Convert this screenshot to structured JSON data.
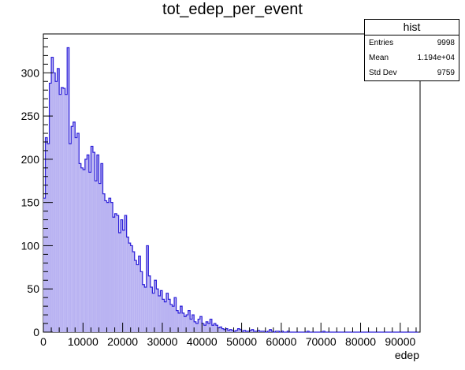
{
  "title": "tot_edep_per_event",
  "stats": {
    "name": "hist",
    "rows": [
      {
        "label": "Entries",
        "value": "9998"
      },
      {
        "label": "Mean",
        "value": "1.194e+04"
      },
      {
        "label": "Std Dev",
        "value": "9759"
      }
    ]
  },
  "colors": {
    "line": "#2b1ed8",
    "fill": "#b9b3f2",
    "axis": "#000000"
  },
  "chart_data": {
    "type": "bar",
    "title": "tot_edep_per_event",
    "xlabel": "edep",
    "ylabel": "",
    "xlim": [
      0,
      95000
    ],
    "ylim": [
      0,
      345
    ],
    "bin_width": 500,
    "grid": false,
    "legend": "stats box top-right",
    "x_ticks": [
      0,
      10000,
      20000,
      30000,
      40000,
      50000,
      60000,
      70000,
      80000,
      90000
    ],
    "x_tick_labels": [
      "0",
      "10000",
      "20000",
      "30000",
      "40000",
      "50000",
      "60000",
      "70000",
      "80000",
      "90000"
    ],
    "y_ticks": [
      0,
      50,
      100,
      150,
      200,
      250,
      300
    ],
    "y_tick_labels": [
      "0",
      "50",
      "100",
      "150",
      "200",
      "250",
      "300"
    ],
    "values": [
      155,
      225,
      218,
      288,
      318,
      300,
      290,
      305,
      275,
      283,
      282,
      275,
      329,
      218,
      238,
      243,
      225,
      230,
      195,
      190,
      188,
      200,
      205,
      185,
      215,
      208,
      175,
      205,
      172,
      195,
      160,
      152,
      150,
      155,
      150,
      133,
      137,
      135,
      115,
      130,
      118,
      135,
      110,
      103,
      100,
      93,
      83,
      78,
      88,
      70,
      55,
      52,
      100,
      65,
      52,
      45,
      60,
      50,
      42,
      48,
      38,
      35,
      45,
      38,
      32,
      30,
      40,
      25,
      22,
      30,
      22,
      18,
      20,
      25,
      15,
      20,
      12,
      10,
      15,
      18,
      10,
      8,
      12,
      10,
      15,
      8,
      10,
      8,
      5,
      6,
      4,
      3,
      4,
      2,
      3,
      2,
      1,
      2,
      4,
      3,
      1,
      2,
      1,
      1,
      2,
      3,
      1,
      1,
      2,
      1,
      1,
      1,
      0,
      1,
      3,
      1,
      0,
      1,
      1,
      0,
      1,
      0,
      0,
      1,
      0,
      0,
      0,
      0,
      0,
      0,
      0,
      0,
      0,
      1,
      0,
      0,
      0,
      0,
      0,
      0,
      0,
      1,
      0,
      0,
      0,
      0,
      0,
      0,
      0,
      0,
      0,
      0,
      0,
      0,
      0,
      0,
      0,
      0,
      0,
      0,
      0,
      0,
      0,
      0,
      0,
      0,
      0,
      0,
      0,
      0,
      0,
      0,
      0,
      0,
      0,
      0,
      0,
      0,
      0,
      0,
      0,
      0,
      0,
      0,
      0,
      0,
      0,
      0,
      0
    ]
  }
}
